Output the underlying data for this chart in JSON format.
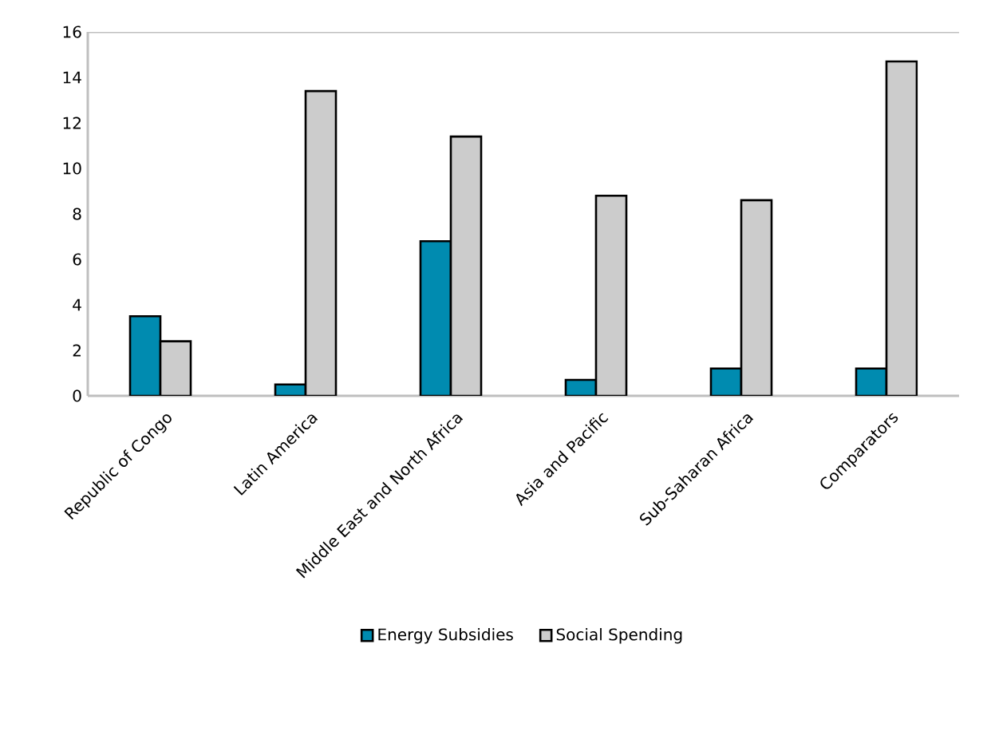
{
  "chart_data": {
    "type": "bar",
    "categories": [
      "Republic of Congo",
      "Latin America",
      "Middle East and North Africa",
      "Asia and Pacific",
      "Sub-Saharan Africa",
      "Comparators"
    ],
    "series": [
      {
        "name": "Energy Subsidies",
        "color": "#008bb0",
        "values": [
          3.5,
          0.5,
          6.8,
          0.7,
          1.2,
          1.2
        ]
      },
      {
        "name": "Social Spending",
        "color": "#cccccc",
        "values": [
          2.4,
          13.4,
          11.4,
          8.8,
          8.6,
          14.7
        ]
      }
    ],
    "ylim": [
      0,
      16
    ],
    "yticks": [
      0,
      2,
      4,
      6,
      8,
      10,
      12,
      14,
      16
    ],
    "grid": false,
    "legend": "bottom"
  }
}
